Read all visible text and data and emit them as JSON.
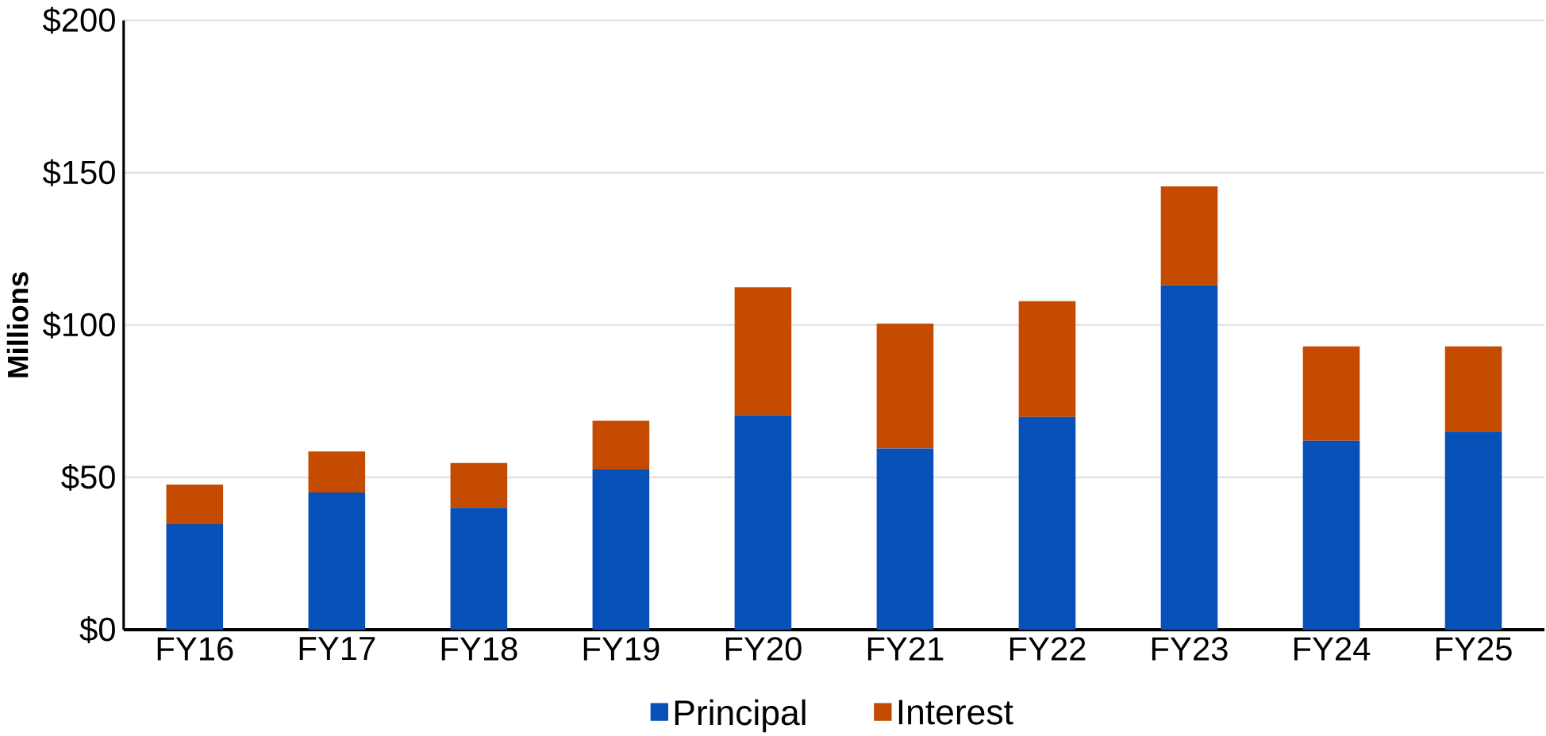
{
  "chart_data": {
    "type": "bar",
    "stacked": true,
    "ylabel": "Millions",
    "categories": [
      "FY16",
      "FY17",
      "FY18",
      "FY19",
      "FY20",
      "FY21",
      "FY22",
      "FY23",
      "FY24",
      "FY25"
    ],
    "series": [
      {
        "name": "Principal",
        "color": "#0650b8",
        "values": [
          34.6,
          45,
          40,
          52.6,
          70.4,
          59.5,
          69.8,
          113,
          62,
          65
        ]
      },
      {
        "name": "Interest",
        "color": "#c54b00",
        "values": [
          13,
          13.5,
          14.7,
          16,
          42,
          41,
          38,
          32.5,
          31,
          28
        ]
      }
    ],
    "ylim": [
      0,
      200
    ],
    "yticks": [
      {
        "value": 0,
        "label": "$0"
      },
      {
        "value": 50,
        "label": "$50"
      },
      {
        "value": 100,
        "label": "$100"
      },
      {
        "value": 150,
        "label": "$150"
      },
      {
        "value": 200,
        "label": "$200"
      }
    ],
    "grid": "y",
    "legend": "bottom"
  }
}
